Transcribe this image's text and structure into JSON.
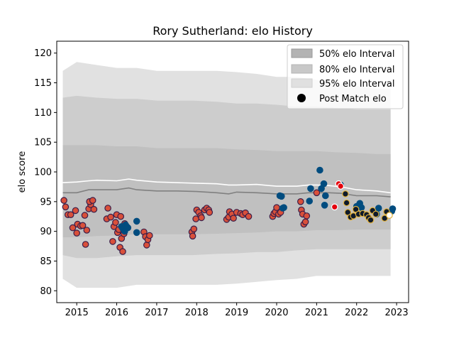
{
  "chart_data": {
    "type": "scatter",
    "title": "Rory Sutherland: elo History",
    "xlabel": "",
    "ylabel": "elo score",
    "xlim": [
      2014.5,
      2023.3
    ],
    "ylim": [
      78,
      122
    ],
    "x_ticks": [
      "2015",
      "2016",
      "2017",
      "2018",
      "2019",
      "2020",
      "2021",
      "2022",
      "2023"
    ],
    "y_ticks": [
      "80",
      "85",
      "90",
      "95",
      "100",
      "105",
      "110",
      "115",
      "120"
    ],
    "grid": false,
    "legend_position": "upper right",
    "legend": {
      "i50": "50% elo Interval",
      "i80": "80% elo Interval",
      "i95": "95% elo Interval",
      "post": "Post Match elo"
    },
    "bands": {
      "x": [
        2014.65,
        2015.0,
        2015.5,
        2016.0,
        2016.5,
        2017.0,
        2017.9,
        2018.5,
        2019.0,
        2019.5,
        2020.0,
        2020.5,
        2021.0,
        2021.5,
        2022.0,
        2022.5,
        2022.85
      ],
      "i95_upper": [
        117,
        118.5,
        118,
        117.5,
        117.5,
        117,
        117,
        117,
        116.8,
        116.5,
        116,
        116,
        115.5,
        115,
        114.5,
        114,
        114
      ],
      "i95_lower": [
        82,
        80.5,
        80.5,
        80.5,
        81,
        81,
        81,
        81,
        81.2,
        81.5,
        81.8,
        82,
        82.5,
        82.5,
        82.5,
        82.5,
        82.5
      ],
      "i80_upper": [
        112.5,
        112.8,
        112.5,
        112.3,
        112.3,
        112,
        112,
        111.8,
        111.5,
        111.5,
        111.3,
        111,
        111,
        110.8,
        110.5,
        110.5,
        110.5
      ],
      "i80_lower": [
        86,
        85.5,
        85.5,
        85.8,
        86,
        86,
        86,
        86.2,
        86.3,
        86.5,
        86.5,
        86.8,
        87,
        87,
        87,
        87,
        87
      ],
      "i50_upper": [
        104.5,
        104.5,
        104.5,
        104.3,
        104.3,
        104,
        104,
        104,
        103.8,
        103.7,
        103.5,
        103.5,
        103.5,
        103.3,
        103.2,
        103,
        103
      ],
      "i50_lower": [
        89,
        89,
        89.2,
        89.3,
        89.5,
        89.5,
        89.5,
        89.6,
        89.7,
        89.8,
        90,
        90,
        90.2,
        90.2,
        90.3,
        90.3,
        90.3
      ]
    },
    "mean_line": {
      "x": [
        2014.65,
        2015.0,
        2015.3,
        2015.5,
        2016.0,
        2016.3,
        2016.5,
        2017.0,
        2017.5,
        2018.0,
        2018.5,
        2018.8,
        2019.0,
        2019.5,
        2020.0,
        2020.5,
        2020.8,
        2021.0,
        2021.3,
        2021.6,
        2022.0,
        2022.5,
        2022.85
      ],
      "y": [
        96.5,
        96.5,
        97,
        97,
        97,
        97.3,
        97,
        96.8,
        96.8,
        96.7,
        96.5,
        96.3,
        96.6,
        96.5,
        96.3,
        96.3,
        96.5,
        96.5,
        96.5,
        96.4,
        96,
        96,
        95.8
      ]
    },
    "white_line": {
      "x": [
        2014.65,
        2015.0,
        2015.3,
        2015.5,
        2016.0,
        2016.3,
        2016.5,
        2017.0,
        2017.5,
        2018.0,
        2018.5,
        2018.8,
        2019.0,
        2019.5,
        2020.0,
        2020.5,
        2020.8,
        2021.0,
        2021.3,
        2021.6,
        2022.0,
        2022.5,
        2022.85
      ],
      "y": [
        98.2,
        98.3,
        98.5,
        98.6,
        98.5,
        98.8,
        98.6,
        98.3,
        98.2,
        98.1,
        98,
        97.8,
        97.8,
        97.9,
        97.6,
        97.6,
        97.8,
        97.8,
        97.7,
        97.5,
        97,
        96.8,
        96.5
      ]
    },
    "series": [
      {
        "fill": "#d9503a",
        "stroke": "#3b1e49",
        "points": [
          [
            2014.68,
            95.2
          ],
          [
            2014.72,
            94.1
          ],
          [
            2014.78,
            92.8
          ],
          [
            2014.85,
            92.8
          ],
          [
            2014.9,
            90.6
          ],
          [
            2014.97,
            93.5
          ],
          [
            2015.0,
            89.7
          ],
          [
            2015.02,
            91.2
          ],
          [
            2015.1,
            90.9
          ],
          [
            2015.15,
            91.0
          ],
          [
            2015.2,
            92.7
          ],
          [
            2015.25,
            90.2
          ],
          [
            2015.22,
            87.8
          ],
          [
            2015.3,
            93.8
          ],
          [
            2015.35,
            94.5
          ],
          [
            2015.32,
            95.0
          ],
          [
            2015.4,
            95.2
          ],
          [
            2015.43,
            93.7
          ],
          [
            2015.78,
            93.9
          ],
          [
            2015.75,
            92.1
          ],
          [
            2015.85,
            92.4
          ],
          [
            2015.9,
            88.3
          ],
          [
            2015.93,
            90.8
          ],
          [
            2015.97,
            91.5
          ],
          [
            2016.0,
            92.8
          ],
          [
            2016.02,
            89.8
          ],
          [
            2016.05,
            90.3
          ],
          [
            2016.08,
            87.3
          ],
          [
            2016.1,
            92.5
          ],
          [
            2016.12,
            88.8
          ],
          [
            2016.15,
            86.6
          ],
          [
            2016.18,
            89.6
          ],
          [
            2016.2,
            91.3
          ],
          [
            2016.68,
            89.9
          ],
          [
            2016.72,
            89.1
          ],
          [
            2016.75,
            87.7
          ],
          [
            2016.78,
            88.6
          ],
          [
            2016.82,
            89.3
          ],
          [
            2017.88,
            89.9
          ],
          [
            2017.9,
            89.2
          ],
          [
            2017.93,
            90.4
          ],
          [
            2017.98,
            92.1
          ],
          [
            2018.0,
            93.6
          ],
          [
            2018.05,
            93.2
          ],
          [
            2018.1,
            92.6
          ],
          [
            2018.12,
            92.3
          ],
          [
            2018.2,
            93.6
          ],
          [
            2018.25,
            93.9
          ],
          [
            2018.3,
            93.6
          ],
          [
            2018.32,
            93.2
          ],
          [
            2018.75,
            92.0
          ],
          [
            2018.8,
            92.4
          ],
          [
            2018.82,
            93.3
          ],
          [
            2018.88,
            92.9
          ],
          [
            2018.92,
            92.2
          ],
          [
            2019.0,
            93.2
          ],
          [
            2019.1,
            93.0
          ],
          [
            2019.15,
            92.8
          ],
          [
            2019.22,
            93.1
          ],
          [
            2019.3,
            92.5
          ],
          [
            2019.9,
            92.5
          ],
          [
            2019.93,
            93.0
          ],
          [
            2019.97,
            93.3
          ],
          [
            2020.0,
            94.0
          ],
          [
            2020.05,
            92.9
          ],
          [
            2020.1,
            93.2
          ],
          [
            2020.6,
            95.0
          ],
          [
            2020.62,
            93.6
          ],
          [
            2020.65,
            92.9
          ],
          [
            2020.68,
            91.2
          ],
          [
            2020.72,
            91.6
          ],
          [
            2020.75,
            92.6
          ],
          [
            2021.0,
            96.5
          ]
        ]
      },
      {
        "fill": "#004c7f",
        "stroke": "#004c7f",
        "points": [
          [
            2016.12,
            90.8
          ],
          [
            2016.15,
            90.5
          ],
          [
            2016.2,
            90.0
          ],
          [
            2016.22,
            91.1
          ],
          [
            2016.25,
            90.8
          ],
          [
            2016.28,
            90.6
          ],
          [
            2016.5,
            91.7
          ],
          [
            2016.5,
            89.8
          ],
          [
            2020.08,
            96.0
          ],
          [
            2020.12,
            95.9
          ],
          [
            2020.15,
            93.9
          ],
          [
            2020.18,
            94.0
          ],
          [
            2020.85,
            97.2
          ],
          [
            2020.82,
            95.1
          ],
          [
            2021.08,
            100.3
          ],
          [
            2021.12,
            97.2
          ],
          [
            2021.18,
            98.0
          ],
          [
            2021.2,
            94.4
          ],
          [
            2021.22,
            96.0
          ],
          [
            2021.6,
            97.8
          ],
          [
            2022.0,
            94.2
          ],
          [
            2022.08,
            94.7
          ],
          [
            2022.12,
            94.0
          ],
          [
            2022.5,
            92.9
          ],
          [
            2022.55,
            93.9
          ],
          [
            2022.9,
            93.8
          ],
          [
            2022.88,
            93.4
          ]
        ]
      },
      {
        "fill": "#e4000c",
        "stroke": "#ffffff",
        "points": [
          [
            2021.45,
            94.1
          ],
          [
            2021.55,
            98.0
          ],
          [
            2021.6,
            97.6
          ]
        ]
      },
      {
        "fill": "#0e1a2b",
        "stroke": "#e3b23c",
        "points": [
          [
            2021.72,
            96.3
          ],
          [
            2021.75,
            94.8
          ],
          [
            2021.78,
            93.2
          ],
          [
            2021.85,
            92.4
          ],
          [
            2021.92,
            92.6
          ],
          [
            2021.98,
            93.7
          ],
          [
            2022.05,
            92.9
          ],
          [
            2022.15,
            93.0
          ],
          [
            2022.25,
            92.8
          ],
          [
            2022.3,
            92.3
          ],
          [
            2022.35,
            91.9
          ],
          [
            2022.4,
            93.5
          ],
          [
            2022.48,
            92.9
          ],
          [
            2022.7,
            92.2
          ],
          [
            2022.75,
            93.3
          ]
        ]
      },
      {
        "fill": "#ffffff",
        "stroke": "#e3b23c",
        "points": [
          [
            2022.82,
            92.7
          ]
        ]
      }
    ]
  }
}
